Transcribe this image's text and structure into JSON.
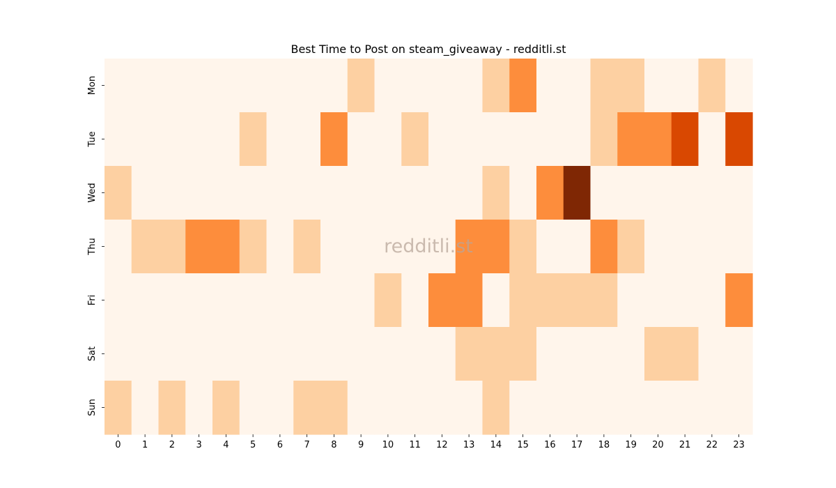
{
  "chart_data": {
    "type": "heatmap",
    "title": "Best Time to Post on steam_giveaway - redditli.st",
    "xlabel": "",
    "ylabel": "",
    "watermark": "redditli.st",
    "colormap": "Oranges",
    "x_tick_labels": [
      "0",
      "1",
      "2",
      "3",
      "4",
      "5",
      "6",
      "7",
      "8",
      "9",
      "10",
      "11",
      "12",
      "13",
      "14",
      "15",
      "16",
      "17",
      "18",
      "19",
      "20",
      "21",
      "22",
      "23"
    ],
    "y_tick_labels": [
      "Mon",
      "Tue",
      "Wed",
      "Thu",
      "Fri",
      "Sat",
      "Sun"
    ],
    "value_range": [
      0,
      4
    ],
    "values": [
      [
        0,
        0,
        0,
        0,
        0,
        0,
        0,
        0,
        0,
        1,
        0,
        0,
        0,
        0,
        1,
        2,
        0,
        0,
        1,
        1,
        0,
        0,
        1,
        0
      ],
      [
        0,
        0,
        0,
        0,
        0,
        1,
        0,
        0,
        2,
        0,
        0,
        1,
        0,
        0,
        0,
        0,
        0,
        0,
        1,
        2,
        2,
        3,
        0,
        3
      ],
      [
        1,
        0,
        0,
        0,
        0,
        0,
        0,
        0,
        0,
        0,
        0,
        0,
        0,
        0,
        1,
        0,
        2,
        4,
        0,
        0,
        0,
        0,
        0,
        0
      ],
      [
        0,
        1,
        1,
        2,
        2,
        1,
        0,
        1,
        0,
        0,
        0,
        0,
        0,
        2,
        2,
        1,
        0,
        0,
        2,
        1,
        0,
        0,
        0,
        0
      ],
      [
        0,
        0,
        0,
        0,
        0,
        0,
        0,
        0,
        0,
        0,
        1,
        0,
        2,
        2,
        0,
        1,
        1,
        1,
        1,
        0,
        0,
        0,
        0,
        2
      ],
      [
        0,
        0,
        0,
        0,
        0,
        0,
        0,
        0,
        0,
        0,
        0,
        0,
        0,
        1,
        1,
        1,
        0,
        0,
        0,
        0,
        1,
        1,
        0,
        0
      ],
      [
        1,
        0,
        1,
        0,
        1,
        0,
        0,
        1,
        1,
        0,
        0,
        0,
        0,
        0,
        1,
        0,
        0,
        0,
        0,
        0,
        0,
        0,
        0,
        0
      ]
    ],
    "level_colors": [
      "#fff5eb",
      "#fdd0a2",
      "#fd8d3c",
      "#d94801",
      "#7f2704"
    ]
  }
}
